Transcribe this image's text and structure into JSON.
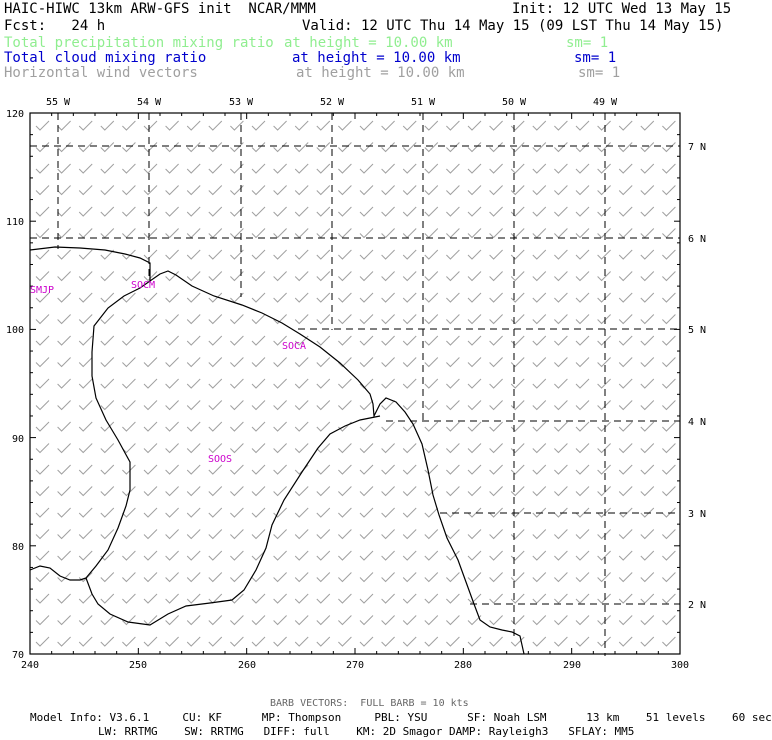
{
  "header": {
    "model_title": "HAIC-HIWC 13km ARW-GFS init  NCAR/MMM",
    "init_time": "Init: 12 UTC Wed 13 May 15",
    "fcst": "Fcst:   24 h",
    "valid_time": "Valid: 12 UTC Thu 14 May 15 (09 LST Thu 14 May 15)"
  },
  "fields": [
    {
      "name": "Total precipitation mixing ratio",
      "level": "at height = 10.00 km",
      "smooth": "sm= 1",
      "color": "#90ee90"
    },
    {
      "name": "Total cloud mixing ratio",
      "level": "at height = 10.00 km",
      "smooth": "sm= 1",
      "color": "#0000cd"
    },
    {
      "name": "Horizontal wind vectors",
      "level": "at height = 10.00 km",
      "smooth": "sm= 1",
      "color": "#a0a0a0"
    }
  ],
  "map": {
    "lon_labels": [
      "55 W",
      "54 W",
      "53 W",
      "52 W",
      "51 W",
      "50 W",
      "49 W"
    ],
    "lat_labels": [
      "7 N",
      "6 N",
      "5 N",
      "4 N",
      "3 N",
      "2 N"
    ],
    "x_ticks": [
      "240",
      "250",
      "260",
      "270",
      "280",
      "290",
      "300"
    ],
    "y_ticks": [
      "120",
      "110",
      "100",
      "90",
      "80",
      "70"
    ],
    "stations": [
      "SMJP",
      "SOCM",
      "SOCA",
      "SOOS"
    ],
    "station_color": "#cc00cc"
  },
  "footer": {
    "barb_note": "BARB VECTORS:  FULL BARB = 10 kts",
    "model_info_line1": "Model Info: V3.6.1     CU: KF      MP: Thompson     PBL: YSU      SF: Noah LSM      13 km    51 levels    60 sec",
    "model_info_line2": "LW: RRTMG    SW: RRTMG   DIFF: full    KM: 2D Smagor DAMP: Rayleigh3   SFLAY: MM5"
  }
}
